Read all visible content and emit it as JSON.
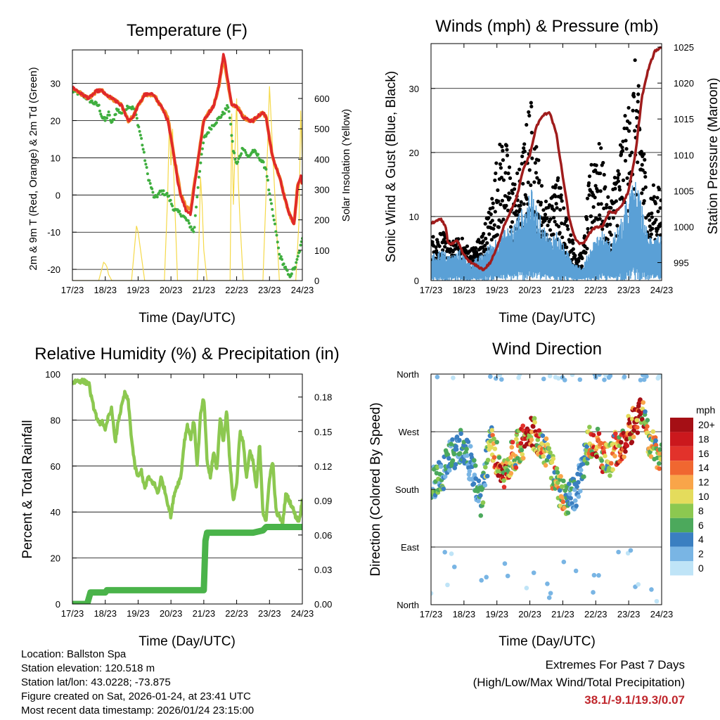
{
  "colors": {
    "temp_2m": "#e0292a",
    "temp_9m": "#f28a26",
    "dewpoint": "#3fae3f",
    "solar": "#f5d94a",
    "wind": "#5aa0d6",
    "gust": "#000000",
    "pressure": "#a01c1c",
    "rh": "#8cc850",
    "precip": "#4ab34a"
  },
  "x_ticks": [
    "17/23",
    "18/23",
    "19/23",
    "20/23",
    "21/23",
    "22/23",
    "23/23",
    "24/23"
  ],
  "footer": {
    "location": "Location: Ballston Spa",
    "elevation": "Station elevation: 120.518 m",
    "latlon": "Station lat/lon: 43.0228; -73.875",
    "created": "Figure created on Sat, 2026-01-24, at 23:41 UTC",
    "recent": "Most recent data timestamp: 2026/01/24 23:15:00"
  },
  "extremes": {
    "title": "Extremes For Past 7 Days",
    "subtitle": "(High/Low/Max Wind/Total Precipitation)",
    "values": "38.1/-9.1/19.3/0.07"
  },
  "chart_data": [
    {
      "type": "line",
      "title": "Temperature (F)",
      "xlabel": "Time (Day/UTC)",
      "ylabel": "2m & 9m T (Red, Orange) & 2m Td (Green)",
      "y2label": "Solar Insolation (Yellow)",
      "x_range": [
        0,
        7
      ],
      "ylim": [
        -23,
        39
      ],
      "y_ticks": [
        -20,
        -10,
        0,
        10,
        20,
        30
      ],
      "y2lim": [
        0,
        760
      ],
      "y2_ticks": [
        0,
        100,
        200,
        300,
        400,
        500,
        600
      ],
      "series": [
        {
          "name": "2m T",
          "x": [
            0,
            0.3,
            0.5,
            0.75,
            0.9,
            1.0,
            1.2,
            1.5,
            1.6,
            1.7,
            1.85,
            2.0,
            2.2,
            2.5,
            2.6,
            2.7,
            2.9,
            3.0,
            3.1,
            3.2,
            3.3,
            3.45,
            3.6,
            3.8,
            4.0,
            4.15,
            4.3,
            4.45,
            4.6,
            4.7,
            4.75,
            4.85,
            5.0,
            5.2,
            5.4,
            5.5,
            5.6,
            5.8,
            5.9,
            6.0,
            6.1,
            6.3,
            6.5,
            6.6,
            6.75,
            6.85,
            6.95,
            7.0
          ],
          "values": [
            29,
            27,
            26,
            28,
            28,
            27,
            26,
            24,
            22,
            20,
            21,
            24,
            27,
            27,
            25,
            24,
            20,
            15,
            10,
            4,
            0,
            -4,
            -5,
            8,
            20,
            22,
            24,
            29,
            38,
            33,
            30,
            24,
            24,
            21,
            20,
            20,
            21,
            22,
            21,
            15,
            10,
            5,
            -2,
            -5,
            -8,
            2,
            5,
            3
          ]
        },
        {
          "name": "9m T",
          "x": [
            0,
            0.3,
            0.5,
            0.75,
            0.9,
            1.0,
            1.2,
            1.5,
            1.6,
            1.7,
            1.85,
            2.0,
            2.2,
            2.5,
            2.6,
            2.7,
            2.9,
            3.0,
            3.1,
            3.2,
            3.3,
            3.45,
            3.6,
            3.8,
            4.0,
            4.15,
            4.3,
            4.45,
            4.6,
            4.7,
            4.75,
            4.85,
            5.0,
            5.2,
            5.4,
            5.5,
            5.6,
            5.8,
            5.9,
            6.0,
            6.1,
            6.3,
            6.5,
            6.6,
            6.75,
            6.85,
            6.95,
            7.0
          ],
          "values": [
            29,
            27,
            26,
            28,
            28,
            27,
            26,
            24,
            22,
            20,
            21,
            24,
            27,
            27,
            25,
            24,
            21,
            16,
            10,
            5,
            0,
            -3,
            -4,
            8,
            20,
            22,
            24,
            29,
            37,
            32,
            29,
            24,
            24,
            21,
            20,
            20,
            21,
            22,
            21,
            15,
            10,
            5,
            -2,
            -5,
            -8,
            2,
            5,
            3
          ]
        },
        {
          "name": "2m Td",
          "x": [
            0,
            0.3,
            0.6,
            0.8,
            0.9,
            1.0,
            1.1,
            1.2,
            1.35,
            1.5,
            1.7,
            1.9,
            2.1,
            2.3,
            2.5,
            2.7,
            2.9,
            3.0,
            3.1,
            3.3,
            3.5,
            3.7,
            3.85,
            4.0,
            4.2,
            4.4,
            4.6,
            4.75,
            4.9,
            5.0,
            5.2,
            5.35,
            5.5,
            5.7,
            5.9,
            6.0,
            6.2,
            6.3,
            6.5,
            6.6,
            6.8,
            7.0
          ],
          "values": [
            28,
            27,
            25,
            24,
            21,
            20,
            22,
            19,
            23,
            22,
            24,
            23,
            15,
            5,
            -1,
            1,
            0,
            -2,
            -4,
            -5,
            -7,
            -10,
            5,
            15,
            18,
            20,
            22,
            24,
            12,
            8,
            13,
            10,
            12,
            10,
            7,
            0,
            -10,
            -16,
            -20,
            -22,
            -19,
            -12
          ]
        },
        {
          "name": "Solar Insolation",
          "axis": "y2",
          "x": [
            0,
            0.8,
            0.9,
            0.95,
            1.0,
            1.05,
            1.1,
            1.2,
            1.8,
            1.9,
            1.95,
            2.0,
            2.1,
            2.2,
            2.8,
            2.9,
            2.95,
            3.0,
            3.05,
            3.1,
            3.2,
            3.8,
            3.85,
            3.9,
            3.95,
            4.0,
            4.1,
            4.8,
            4.85,
            4.9,
            4.95,
            5.0,
            5.05,
            5.1,
            5.2,
            5.8,
            5.9,
            6.0,
            6.1,
            6.2,
            6.3,
            6.8,
            6.9,
            6.95,
            7.0
          ],
          "values": [
            0,
            0,
            40,
            60,
            55,
            45,
            20,
            0,
            0,
            120,
            180,
            160,
            80,
            0,
            0,
            280,
            520,
            380,
            500,
            300,
            0,
            0,
            120,
            340,
            250,
            100,
            0,
            0,
            550,
            250,
            430,
            600,
            330,
            200,
            0,
            0,
            300,
            640,
            420,
            200,
            0,
            0,
            200,
            560,
            400
          ]
        }
      ]
    },
    {
      "type": "scatter",
      "title": "Winds (mph) & Pressure (mb)",
      "xlabel": "Time (Day/UTC)",
      "ylabel": "Sonic Wind & Gust (Blue, Black)",
      "y2label": "Station Pressure (Maroon)",
      "x_range": [
        0,
        7
      ],
      "ylim": [
        0,
        37
      ],
      "y_ticks": [
        0,
        10,
        20,
        30
      ],
      "y2lim": [
        992.5,
        1025.5
      ],
      "y2_ticks": [
        995,
        1000,
        1005,
        1010,
        1015,
        1020,
        1025
      ],
      "series": [
        {
          "name": "Sonic Wind (envelope)",
          "x": [
            0,
            0.3,
            0.6,
            0.9,
            1.2,
            1.5,
            1.8,
            2.0,
            2.2,
            2.5,
            2.7,
            2.9,
            3.0,
            3.2,
            3.4,
            3.6,
            3.8,
            4.0,
            4.2,
            4.4,
            4.6,
            4.8,
            5.0,
            5.2,
            5.4,
            5.6,
            5.8,
            6.0,
            6.2,
            6.4,
            6.6,
            6.8,
            7.0
          ],
          "values": [
            4,
            5,
            4,
            5,
            3,
            4,
            6,
            7,
            8,
            9,
            11,
            12,
            15,
            12,
            9,
            7,
            8,
            6,
            4,
            3,
            2,
            5,
            7,
            8,
            6,
            8,
            10,
            14,
            16,
            12,
            7,
            8,
            7
          ]
        },
        {
          "name": "Gust (envelope)",
          "x": [
            0,
            0.3,
            0.6,
            0.9,
            1.2,
            1.5,
            1.8,
            2.0,
            2.2,
            2.5,
            2.7,
            2.9,
            3.0,
            3.2,
            3.4,
            3.6,
            3.8,
            4.0,
            4.2,
            4.4,
            4.6,
            4.8,
            5.0,
            5.2,
            5.4,
            5.6,
            5.8,
            6.0,
            6.2,
            6.4,
            6.6,
            6.8,
            7.0
          ],
          "values": [
            7,
            8,
            6,
            7,
            5,
            7,
            12,
            20,
            24,
            16,
            18,
            25,
            30,
            22,
            14,
            12,
            18,
            14,
            8,
            5,
            4,
            16,
            24,
            20,
            12,
            18,
            24,
            28,
            35,
            26,
            12,
            16,
            14
          ]
        },
        {
          "name": "Station Pressure",
          "axis": "y2",
          "x": [
            0,
            0.3,
            0.45,
            0.5,
            0.6,
            0.8,
            1.0,
            1.2,
            1.4,
            1.6,
            1.8,
            2.0,
            2.2,
            2.4,
            2.6,
            2.8,
            3.0,
            3.2,
            3.4,
            3.6,
            3.8,
            4.0,
            4.2,
            4.4,
            4.6,
            4.8,
            5.0,
            5.2,
            5.4,
            5.6,
            5.8,
            6.0,
            6.2,
            6.4,
            6.6,
            6.8,
            7.0
          ],
          "values": [
            1000.5,
            1001,
            1000,
            998,
            997.5,
            998,
            996,
            995,
            994.5,
            994,
            995,
            997,
            1000,
            1002,
            1004,
            1008,
            1010,
            1014,
            1015.5,
            1016,
            1013,
            1007,
            1001,
            998,
            997.5,
            999,
            1000,
            1000,
            1002,
            1002,
            1003,
            1005,
            1010,
            1018,
            1022,
            1024.5,
            1025
          ]
        }
      ]
    },
    {
      "type": "line",
      "title": "Relative Humidity (%) & Precipitation (in)",
      "xlabel": "Time (Day/UTC)",
      "ylabel": "Percent & Total Rainfall",
      "x_range": [
        0,
        7
      ],
      "ylim": [
        0,
        100
      ],
      "y_ticks": [
        0,
        20,
        40,
        60,
        80,
        100
      ],
      "y2lim": [
        0,
        0.2
      ],
      "y2_ticks": [
        "0.00",
        "0.03",
        "0.06",
        "0.09",
        "0.12",
        "0.15",
        "0.18"
      ],
      "series": [
        {
          "name": "Relative Humidity",
          "x": [
            0,
            0.1,
            0.3,
            0.5,
            0.6,
            0.8,
            0.9,
            1.0,
            1.1,
            1.2,
            1.3,
            1.4,
            1.6,
            1.7,
            1.8,
            1.9,
            2.0,
            2.1,
            2.2,
            2.3,
            2.5,
            2.6,
            2.7,
            2.8,
            2.9,
            3.0,
            3.1,
            3.2,
            3.3,
            3.4,
            3.5,
            3.6,
            3.7,
            3.8,
            3.9,
            4.0,
            4.1,
            4.2,
            4.3,
            4.4,
            4.5,
            4.6,
            4.7,
            4.8,
            4.9,
            5.0,
            5.1,
            5.2,
            5.3,
            5.4,
            5.5,
            5.6,
            5.7,
            5.8,
            5.9,
            6.0,
            6.1,
            6.2,
            6.3,
            6.4,
            6.5,
            6.6,
            6.7,
            6.8,
            6.9,
            7.0
          ],
          "values": [
            96,
            97,
            97,
            96,
            88,
            78,
            80,
            75,
            82,
            85,
            70,
            80,
            92,
            88,
            72,
            60,
            55,
            58,
            50,
            55,
            52,
            48,
            55,
            50,
            44,
            38,
            48,
            52,
            55,
            70,
            78,
            72,
            80,
            60,
            82,
            90,
            62,
            55,
            66,
            58,
            82,
            70,
            85,
            60,
            45,
            52,
            75,
            70,
            55,
            66,
            62,
            50,
            70,
            40,
            36,
            55,
            62,
            40,
            38,
            35,
            48,
            45,
            42,
            38,
            36,
            45
          ]
        },
        {
          "name": "Total Precipitation",
          "axis": "y2",
          "x": [
            0,
            0.3,
            0.45,
            0.55,
            0.7,
            1.0,
            1.05,
            1.3,
            4.0,
            4.05,
            4.1,
            5.5,
            5.8,
            5.9,
            6.3,
            7.0
          ],
          "values": [
            0.0,
            0.0,
            0.0,
            0.01,
            0.01,
            0.01,
            0.012,
            0.012,
            0.012,
            0.055,
            0.062,
            0.062,
            0.064,
            0.067,
            0.067,
            0.067
          ]
        }
      ]
    },
    {
      "type": "scatter",
      "title": "Wind Direction",
      "xlabel": "Time (Day/UTC)",
      "ylabel": "Direction (Colored By Speed)",
      "x_range": [
        0,
        7
      ],
      "ylim": [
        0,
        360
      ],
      "y_tick_labels": [
        "North",
        "East",
        "South",
        "West",
        "North"
      ],
      "y_tick_values": [
        0,
        90,
        180,
        270,
        360
      ],
      "legend_title": "mph",
      "legend_labels": [
        "20+",
        "18",
        "16",
        "14",
        "12",
        "10",
        "8",
        "6",
        "4",
        "2",
        "0"
      ],
      "legend_colors": [
        "#a50f15",
        "#cb181d",
        "#e2322b",
        "#f06730",
        "#f9a549",
        "#e4dc5c",
        "#8cc850",
        "#4ca95c",
        "#3a7fc1",
        "#79b5e4",
        "#bfe4f7"
      ],
      "series": [
        {
          "name": "Direction trend (deg)",
          "x": [
            0,
            0.3,
            0.6,
            0.9,
            1.2,
            1.5,
            1.8,
            2.0,
            2.2,
            2.5,
            2.7,
            2.9,
            3.0,
            3.2,
            3.4,
            3.6,
            3.8,
            4.0,
            4.2,
            4.4,
            4.6,
            4.8,
            5.0,
            5.2,
            5.4,
            5.6,
            5.8,
            6.0,
            6.2,
            6.4,
            6.6,
            6.8,
            7.0
          ],
          "values": [
            185,
            200,
            230,
            250,
            220,
            160,
            255,
            230,
            200,
            235,
            250,
            260,
            275,
            265,
            250,
            220,
            190,
            170,
            165,
            175,
            220,
            255,
            260,
            230,
            220,
            245,
            250,
            270,
            290,
            300,
            260,
            240,
            230
          ]
        }
      ]
    }
  ]
}
